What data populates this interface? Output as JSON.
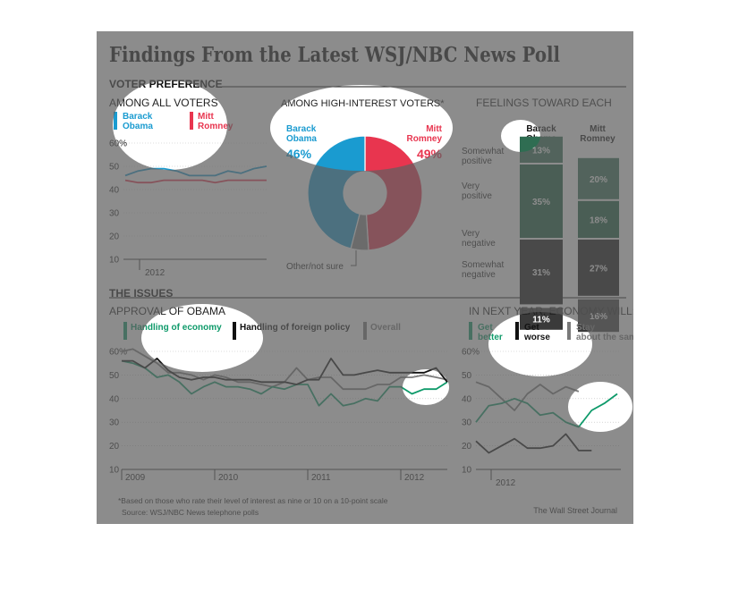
{
  "title": "Findings From the Latest WSJ/NBC News Poll",
  "colors": {
    "obama": "#1a9bd0",
    "romney": "#e8354f",
    "economy": "#0e9a6a",
    "foreign": "#111111",
    "overall": "#7a7a7a",
    "positive": "#145a3a",
    "negative": "#111111",
    "ink": "#111111"
  },
  "voter_preference": {
    "heading": "VOTER PREFERENCE",
    "all_voters": {
      "subtitle": "AMONG ALL VOTERS",
      "legend": [
        "Barack Obama",
        "Mitt Romney"
      ],
      "y_ticks": [
        "10",
        "20",
        "30",
        "40",
        "50",
        "60%"
      ],
      "x_label": "2012"
    },
    "high_interest": {
      "subtitle": "AMONG HIGH-INTEREST VOTERS*",
      "obama_label": "Barack Obama",
      "obama_value": "46%",
      "romney_label": "Mitt Romney",
      "romney_value": "49%",
      "other_label": "Other/not sure"
    },
    "feelings": {
      "subtitle": "FEELINGS TOWARD EACH",
      "columns": [
        "Barack Obama",
        "Mitt Romney"
      ],
      "rows": [
        "Somewhat positive",
        "Very positive",
        "Very negative",
        "Somewhat negative"
      ],
      "obama_values": [
        "13%",
        "35%",
        "31%",
        "11%"
      ],
      "romney_values": [
        "20%",
        "18%",
        "27%",
        "16%"
      ]
    }
  },
  "issues": {
    "heading": "THE ISSUES",
    "approval": {
      "subtitle": "APPROVAL OF OBAMA",
      "legend": [
        "Handling of economy",
        "Handling of foreign policy",
        "Overall"
      ],
      "y_ticks": [
        "10",
        "20",
        "30",
        "40",
        "50",
        "60%"
      ],
      "x_ticks": [
        "2009",
        "2010",
        "2011",
        "2012"
      ]
    },
    "economy_outlook": {
      "subtitle": "IN NEXT YEAR, ECONOMY WILL:",
      "legend": [
        "Get better",
        "Get worse",
        "Stay about the same"
      ],
      "y_ticks": [
        "10",
        "20",
        "30",
        "40",
        "50",
        "60%"
      ],
      "x_label": "2012"
    }
  },
  "footnote": "*Based on those who rate their level of interest as nine or 10 on a 10-point scale",
  "source": "Source: WSJ/NBC News telephone polls",
  "credit": "The Wall Street Journal",
  "chart_data": [
    {
      "type": "line",
      "title": "AMONG ALL VOTERS",
      "x": [
        1,
        2,
        3,
        4,
        5,
        6,
        7,
        8,
        9,
        10,
        11,
        12
      ],
      "series": [
        {
          "name": "Barack Obama",
          "values": [
            46,
            48,
            49,
            49,
            48,
            46,
            46,
            46,
            48,
            47,
            49,
            50
          ]
        },
        {
          "name": "Mitt Romney",
          "values": [
            44,
            43,
            43,
            44,
            44,
            44,
            44,
            43,
            44,
            44,
            44,
            44
          ]
        }
      ],
      "ylim": [
        10,
        60
      ]
    },
    {
      "type": "pie",
      "title": "AMONG HIGH-INTEREST VOTERS*",
      "categories": [
        "Barack Obama",
        "Mitt Romney",
        "Other/not sure"
      ],
      "values": [
        46,
        49,
        5
      ]
    },
    {
      "type": "bar",
      "title": "FEELINGS TOWARD EACH",
      "categories": [
        "Somewhat positive",
        "Very positive",
        "Very negative",
        "Somewhat negative"
      ],
      "series": [
        {
          "name": "Barack Obama",
          "values": [
            13,
            35,
            31,
            11
          ]
        },
        {
          "name": "Mitt Romney",
          "values": [
            20,
            18,
            27,
            16
          ]
        }
      ]
    },
    {
      "type": "line",
      "title": "APPROVAL OF OBAMA",
      "x": [
        2009.0,
        2009.12,
        2009.25,
        2009.38,
        2009.5,
        2009.62,
        2009.75,
        2009.88,
        2010.0,
        2010.12,
        2010.25,
        2010.38,
        2010.5,
        2010.62,
        2010.75,
        2010.88,
        2011.0,
        2011.12,
        2011.25,
        2011.38,
        2011.5,
        2011.62,
        2011.75,
        2011.88,
        2012.0,
        2012.12,
        2012.25,
        2012.38,
        2012.5
      ],
      "series": [
        {
          "name": "Handling of economy",
          "values": [
            56,
            55,
            53,
            49,
            50,
            47,
            42,
            45,
            47,
            45,
            45,
            44,
            42,
            45,
            44,
            46,
            46,
            37,
            42,
            37,
            38,
            40,
            39,
            45,
            45,
            42,
            44,
            44,
            47
          ]
        },
        {
          "name": "Handling of foreign policy",
          "values": [
            56,
            56,
            53,
            57,
            52,
            49,
            48,
            49,
            49,
            48,
            48,
            48,
            47,
            47,
            47,
            46,
            48,
            48,
            57,
            50,
            50,
            51,
            52,
            51,
            51,
            51,
            51,
            53,
            47
          ]
        },
        {
          "name": "Overall",
          "values": [
            60,
            61,
            58,
            55,
            51,
            51,
            50,
            48,
            50,
            49,
            47,
            47,
            46,
            45,
            47,
            53,
            48,
            49,
            49,
            44,
            44,
            44,
            46,
            46,
            49,
            49,
            50,
            49,
            48
          ]
        }
      ],
      "ylim": [
        10,
        60
      ]
    },
    {
      "type": "line",
      "title": "IN NEXT YEAR, ECONOMY WILL:",
      "x": [
        1,
        2,
        3,
        4,
        5,
        6,
        7,
        8,
        9,
        10,
        11,
        12
      ],
      "series": [
        {
          "name": "Get better",
          "values": [
            30,
            37,
            38,
            40,
            38,
            33,
            34,
            30,
            28,
            35,
            38,
            42
          ]
        },
        {
          "name": "Get worse",
          "values": [
            22,
            17,
            20,
            23,
            19,
            19,
            20,
            25,
            18,
            18,
            null,
            null
          ]
        },
        {
          "name": "Stay about the same",
          "values": [
            47,
            45,
            40,
            35,
            42,
            46,
            42,
            45,
            43,
            null,
            null,
            null
          ]
        }
      ],
      "ylim": [
        10,
        60
      ]
    }
  ]
}
